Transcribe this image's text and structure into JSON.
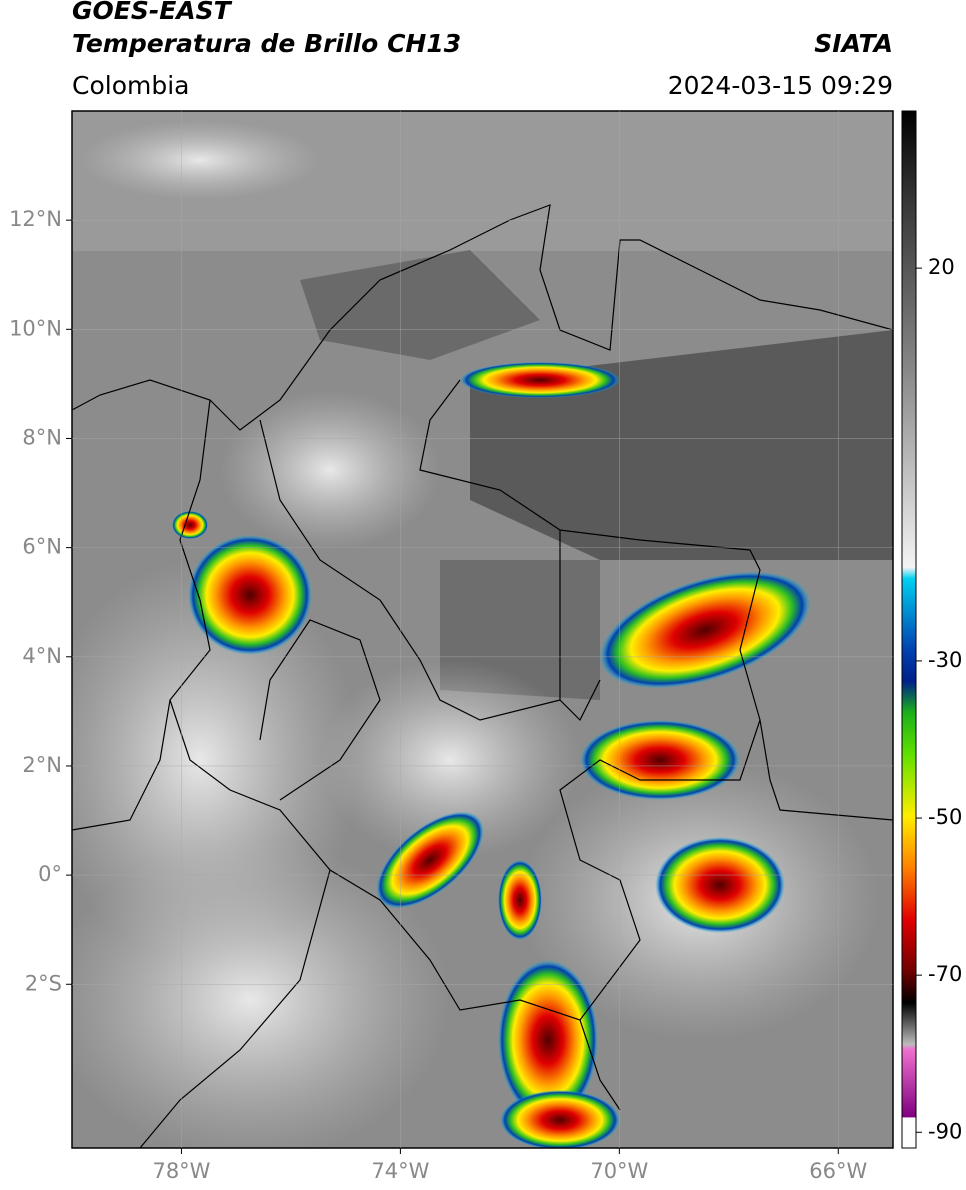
{
  "header": {
    "title": "GOES-EAST",
    "subtitle": "Temperatura de Brillo CH13",
    "region": "Colombia",
    "source": "SIATA",
    "timestamp": "2024-03-15 09:29"
  },
  "map": {
    "xlim": [
      -80,
      -65
    ],
    "ylim": [
      -5,
      14
    ],
    "xticks": [
      {
        "value": -78,
        "label": "78°W"
      },
      {
        "value": -74,
        "label": "74°W"
      },
      {
        "value": -70,
        "label": "70°W"
      },
      {
        "value": -66,
        "label": "66°W"
      }
    ],
    "yticks": [
      {
        "value": 12,
        "label": "12°N"
      },
      {
        "value": 10,
        "label": "10°N"
      },
      {
        "value": 8,
        "label": "8°N"
      },
      {
        "value": 6,
        "label": "6°N"
      },
      {
        "value": 4,
        "label": "4°N"
      },
      {
        "value": 2,
        "label": "2°N"
      },
      {
        "value": 0,
        "label": "0°"
      },
      {
        "value": -2,
        "label": "2°S"
      }
    ],
    "grid": true
  },
  "colorbar": {
    "lim": [
      -92,
      40
    ],
    "ticks": [
      20,
      -30,
      -50,
      -70,
      -90
    ]
  }
}
